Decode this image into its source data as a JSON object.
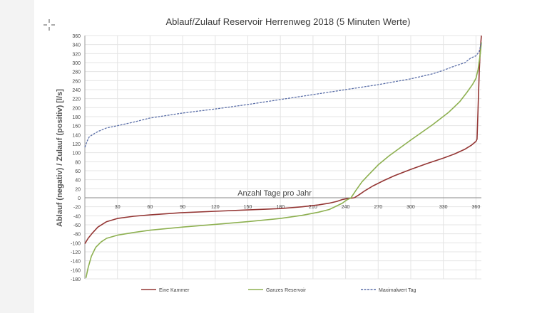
{
  "chart_data": {
    "type": "line",
    "title": "Ablauf/Zulauf Reservoir Herrenweg 2018 (5 Minuten Werte)",
    "xlabel": "Anzahl Tage pro Jahr",
    "ylabel": "Ablauf (negativ) / Zulauf (positiv) [l/s]",
    "xlim": [
      0,
      365
    ],
    "ylim": [
      -180,
      360
    ],
    "x_ticks": [
      "30",
      "60",
      "90",
      "120",
      "150",
      "180",
      "210",
      "240",
      "270",
      "300",
      "330",
      "360"
    ],
    "y_ticks": [
      "360",
      "340",
      "320",
      "300",
      "280",
      "260",
      "240",
      "220",
      "200",
      "180",
      "160",
      "140",
      "120",
      "100",
      "80",
      "60",
      "40",
      "20",
      "0",
      "-20",
      "-40",
      "-60",
      "-80",
      "-100",
      "-120",
      "-140",
      "-160",
      "-180"
    ],
    "grid": true,
    "legend_position": "bottom",
    "series": [
      {
        "name": "Eine Kammer",
        "color": "#943634",
        "style": "solid",
        "x": [
          0,
          3,
          7,
          12,
          20,
          30,
          45,
          60,
          90,
          120,
          150,
          180,
          200,
          215,
          225,
          232,
          237,
          241,
          245,
          248,
          252,
          258,
          265,
          275,
          285,
          300,
          315,
          330,
          340,
          350,
          356,
          360,
          361,
          362,
          363,
          364,
          365
        ],
        "y": [
          -102,
          -90,
          -78,
          -65,
          -53,
          -46,
          -41,
          -38,
          -33,
          -30,
          -27,
          -24,
          -20,
          -16,
          -12,
          -8,
          -4,
          -2,
          -1,
          0,
          6,
          16,
          26,
          38,
          49,
          63,
          76,
          88,
          97,
          108,
          117,
          125,
          130,
          200,
          280,
          330,
          360
        ]
      },
      {
        "name": "Ganzes Reservoir",
        "color": "#8db050",
        "style": "solid",
        "x": [
          1,
          3,
          6,
          10,
          15,
          20,
          30,
          45,
          60,
          90,
          120,
          150,
          180,
          200,
          215,
          225,
          232,
          237,
          241,
          245,
          250,
          255,
          260,
          270,
          280,
          300,
          320,
          335,
          345,
          352,
          357,
          360,
          362,
          364,
          365
        ],
        "y": [
          -178,
          -155,
          -130,
          -110,
          -98,
          -90,
          -83,
          -77,
          -72,
          -65,
          -59,
          -53,
          -46,
          -39,
          -32,
          -26,
          -18,
          -12,
          -5,
          0,
          18,
          35,
          48,
          73,
          93,
          128,
          162,
          190,
          213,
          235,
          252,
          265,
          285,
          320,
          345
        ]
      },
      {
        "name": "Maximalwert Tag",
        "color": "#5b6fa8",
        "style": "dashed",
        "x": [
          0,
          2,
          4,
          7,
          12,
          20,
          30,
          45,
          60,
          90,
          120,
          150,
          180,
          210,
          240,
          270,
          300,
          320,
          330,
          340,
          350,
          355,
          360,
          363,
          365
        ],
        "y": [
          112,
          125,
          135,
          140,
          147,
          155,
          160,
          168,
          177,
          188,
          197,
          207,
          218,
          229,
          240,
          251,
          264,
          275,
          283,
          292,
          300,
          310,
          315,
          325,
          345
        ]
      }
    ]
  }
}
